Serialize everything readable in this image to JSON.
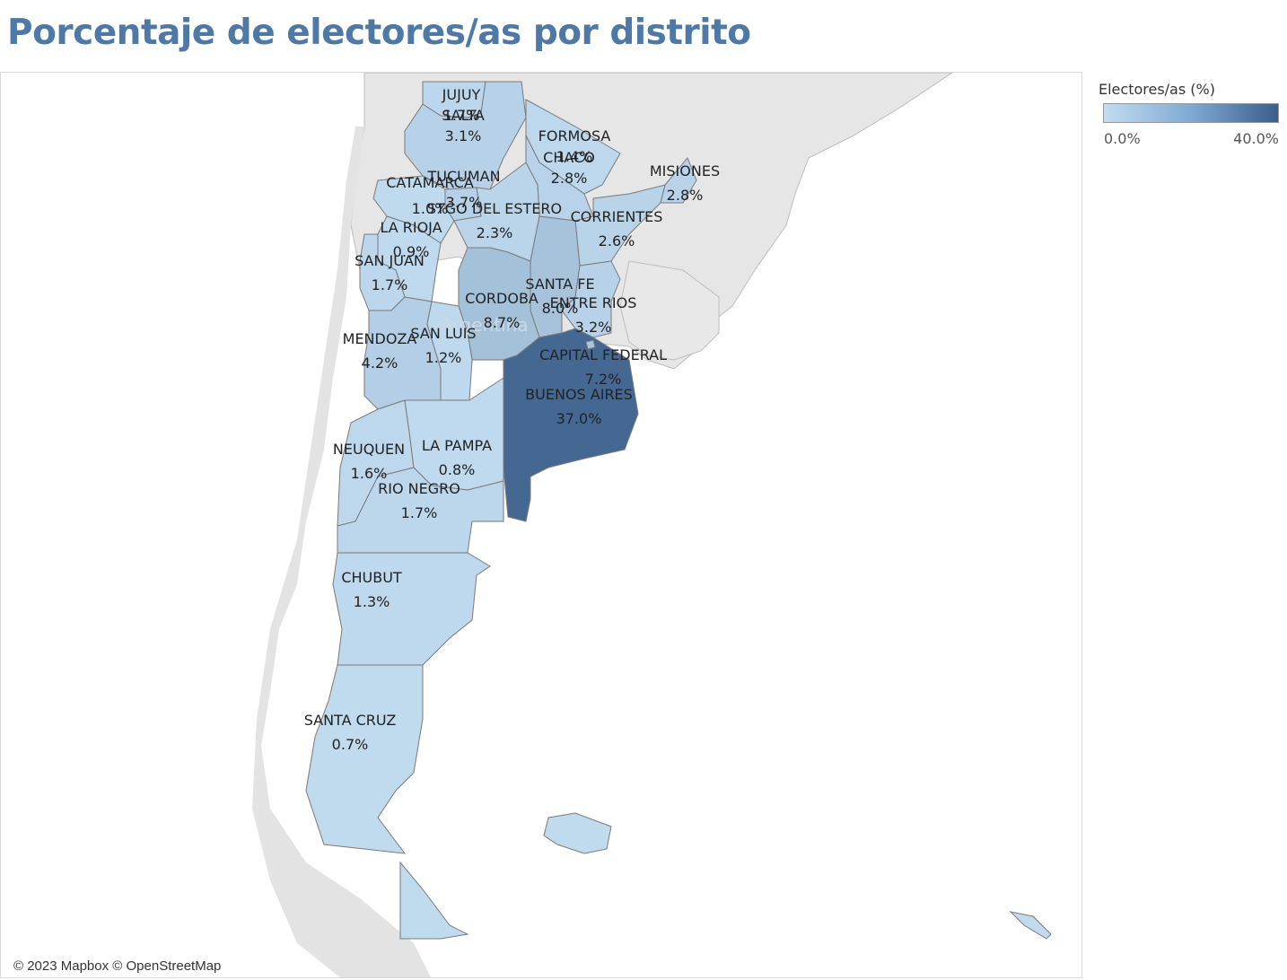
{
  "title": "Porcentaje de electores/as por distrito",
  "legend": {
    "title": "Electores/as (%)",
    "min_label": "0.0%",
    "max_label": "40.0%",
    "min": 0.0,
    "max": 40.0,
    "color_low": "#c2dcf0",
    "color_high": "#3a5f8a"
  },
  "attribution": "© 2023 Mapbox © OpenStreetMap",
  "basemap_label": "Argentina",
  "districts": [
    {
      "name": "JUJUY",
      "pct_label": "1.7%",
      "value": 1.7
    },
    {
      "name": "SALTA",
      "pct_label": "3.1%",
      "value": 3.1
    },
    {
      "name": "FORMOSA",
      "pct_label": "1.4%",
      "value": 1.4
    },
    {
      "name": "CHACO",
      "pct_label": "2.8%",
      "value": 2.8
    },
    {
      "name": "MISIONES",
      "pct_label": "2.8%",
      "value": 2.8
    },
    {
      "name": "TUCUMAN",
      "pct_label": "3.7%",
      "value": 3.7
    },
    {
      "name": "CATAMARCA",
      "pct_label": "1.0%",
      "value": 1.0
    },
    {
      "name": "STGO DEL ESTERO",
      "pct_label": "2.3%",
      "value": 2.3
    },
    {
      "name": "CORRIENTES",
      "pct_label": "2.6%",
      "value": 2.6
    },
    {
      "name": "LA RIOJA",
      "pct_label": "0.9%",
      "value": 0.9
    },
    {
      "name": "SAN JUAN",
      "pct_label": "1.7%",
      "value": 1.7
    },
    {
      "name": "SANTA FE",
      "pct_label": "8.0%",
      "value": 8.0
    },
    {
      "name": "CORDOBA",
      "pct_label": "8.7%",
      "value": 8.7
    },
    {
      "name": "ENTRE RIOS",
      "pct_label": "3.2%",
      "value": 3.2
    },
    {
      "name": "MENDOZA",
      "pct_label": "4.2%",
      "value": 4.2
    },
    {
      "name": "SAN LUIS",
      "pct_label": "1.2%",
      "value": 1.2
    },
    {
      "name": "CAPITAL FEDERAL",
      "pct_label": "7.2%",
      "value": 7.2
    },
    {
      "name": "BUENOS AIRES",
      "pct_label": "37.0%",
      "value": 37.0
    },
    {
      "name": "NEUQUEN",
      "pct_label": "1.6%",
      "value": 1.6
    },
    {
      "name": "LA PAMPA",
      "pct_label": "0.8%",
      "value": 0.8
    },
    {
      "name": "RIO NEGRO",
      "pct_label": "1.7%",
      "value": 1.7
    },
    {
      "name": "CHUBUT",
      "pct_label": "1.3%",
      "value": 1.3
    },
    {
      "name": "SANTA CRUZ",
      "pct_label": "0.7%",
      "value": 0.7
    }
  ]
}
